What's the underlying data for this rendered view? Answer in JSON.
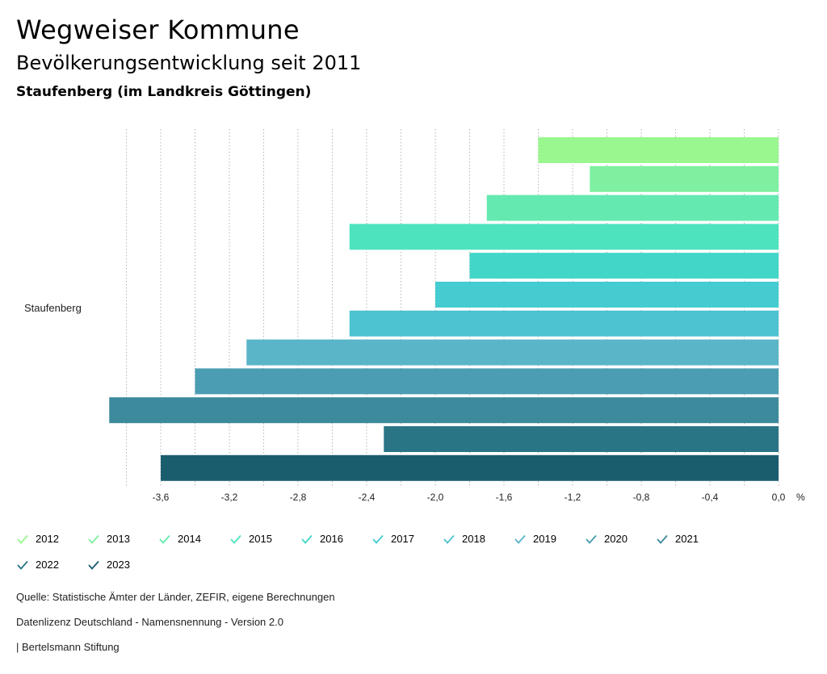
{
  "header": {
    "title": "Wegweiser Kommune",
    "subtitle": "Bevölkerungsentwicklung seit 2011",
    "region": "Staufenberg (im Landkreis Göttingen)"
  },
  "chart_data": {
    "type": "bar",
    "orientation": "horizontal",
    "category": "Staufenberg",
    "unit": "%",
    "xlim": [
      -3.8,
      0.0
    ],
    "x_ticks": [
      "-3,6",
      "-3,2",
      "-2,8",
      "-2,4",
      "-2,0",
      "-1,6",
      "-1,2",
      "-0,8",
      "-0,4",
      "0,0"
    ],
    "grid": true,
    "series": [
      {
        "name": "2012",
        "value": -1.4,
        "color": "#9af78f"
      },
      {
        "name": "2013",
        "value": -1.1,
        "color": "#7ef0a0"
      },
      {
        "name": "2014",
        "value": -1.7,
        "color": "#64eab0"
      },
      {
        "name": "2015",
        "value": -2.5,
        "color": "#4de3bf"
      },
      {
        "name": "2016",
        "value": -1.8,
        "color": "#41d6c8"
      },
      {
        "name": "2017",
        "value": -2.0,
        "color": "#44ccd0"
      },
      {
        "name": "2018",
        "value": -2.5,
        "color": "#4dc2d0"
      },
      {
        "name": "2019",
        "value": -3.1,
        "color": "#5ab5c8"
      },
      {
        "name": "2020",
        "value": -3.4,
        "color": "#4a9db3"
      },
      {
        "name": "2021",
        "value": -3.9,
        "color": "#3d8a9c"
      },
      {
        "name": "2022",
        "value": -2.3,
        "color": "#2a7585"
      },
      {
        "name": "2023",
        "value": -3.6,
        "color": "#1a5e6e"
      }
    ]
  },
  "footer": {
    "source": "Quelle: Statistische Ämter der Länder, ZEFIR, eigene Berechnungen",
    "license": "Datenlizenz Deutschland - Namensnennung - Version 2.0",
    "credit": "| Bertelsmann Stiftung"
  }
}
